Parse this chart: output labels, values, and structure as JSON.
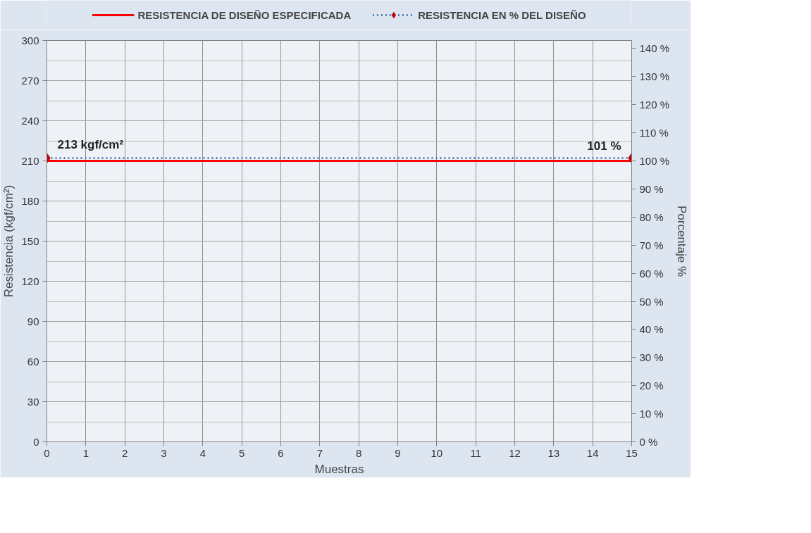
{
  "chart_data": {
    "type": "line",
    "xlabel": "Muestras",
    "ylabel": "Resistencia (kgf/cm²)",
    "y2label": "Porcentaje %",
    "x": [
      0,
      15
    ],
    "series": [
      {
        "name": "RESISTENCIA DE DISEÑO ESPECIFICADA",
        "color": "#ff0000",
        "values": [
          210,
          210
        ],
        "line_style": "solid",
        "marker": "none"
      },
      {
        "name": "RESISTENCIA EN % DEL DISEÑO",
        "color": "#4f81bd",
        "colors": [
          "#c00000",
          "#c00000"
        ],
        "values": [
          101,
          101
        ],
        "axis": "y2",
        "line_style": "dotted",
        "marker": "diamond",
        "value_labels": [
          null,
          "101 %"
        ]
      }
    ],
    "xlim": [
      0,
      15
    ],
    "xticks": [
      0,
      1,
      2,
      3,
      4,
      5,
      6,
      7,
      8,
      9,
      10,
      11,
      12,
      13,
      14,
      15
    ],
    "ylim": [
      0,
      300
    ],
    "yticks": [
      0,
      30,
      60,
      90,
      120,
      150,
      180,
      210,
      240,
      270,
      300
    ],
    "y2lim": [
      0,
      142.86
    ],
    "y2ticks": [
      {
        "value": 0,
        "label": "0 %"
      },
      {
        "value": 10,
        "label": "10 %"
      },
      {
        "value": 20,
        "label": "20 %"
      },
      {
        "value": 30,
        "label": "30 %"
      },
      {
        "value": 40,
        "label": "40 %"
      },
      {
        "value": 50,
        "label": "50 %"
      },
      {
        "value": 60,
        "label": "60 %"
      },
      {
        "value": 70,
        "label": "70 %"
      },
      {
        "value": 80,
        "label": "80 %"
      },
      {
        "value": 90,
        "label": "90 %"
      },
      {
        "value": 100,
        "label": "100 %"
      },
      {
        "value": 110,
        "label": "110 %"
      },
      {
        "value": 120,
        "label": "120 %"
      },
      {
        "value": 130,
        "label": "130 %"
      },
      {
        "value": 140,
        "label": "140 %"
      }
    ],
    "annotations": [
      {
        "text": "213 kgf/cm²",
        "x": 0,
        "y": 213
      }
    ],
    "grid": true,
    "legend": "top"
  }
}
